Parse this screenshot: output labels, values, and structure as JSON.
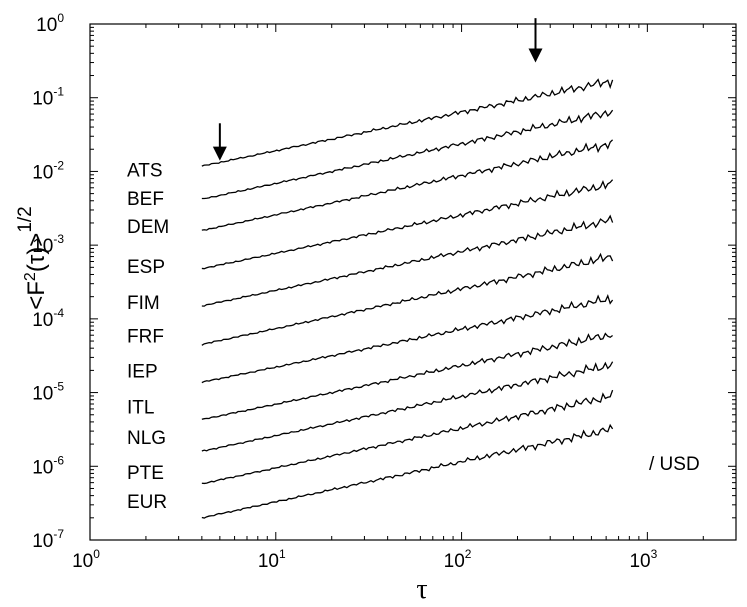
{
  "chart_data": {
    "type": "line",
    "xscale": "log",
    "yscale": "log",
    "xlim": [
      1,
      3000
    ],
    "ylim": [
      1e-07,
      1
    ],
    "grid": false,
    "xlabel": "τ",
    "ylabel_main": "<F",
    "ylabel_sup": "2",
    "ylabel_mid": "(τ)>",
    "ylabel_power": "1/2",
    "annotation": "/ USD",
    "x_ticks": [
      {
        "value": 1,
        "base": "10",
        "exp": "0"
      },
      {
        "value": 10,
        "base": "10",
        "exp": "1"
      },
      {
        "value": 100,
        "base": "10",
        "exp": "2"
      },
      {
        "value": 1000,
        "base": "10",
        "exp": "3"
      }
    ],
    "y_ticks": [
      {
        "value": 1e-07,
        "base": "10",
        "exp": "-7"
      },
      {
        "value": 1e-06,
        "base": "10",
        "exp": "-6"
      },
      {
        "value": 1e-05,
        "base": "10",
        "exp": "-5"
      },
      {
        "value": 0.0001,
        "base": "10",
        "exp": "-4"
      },
      {
        "value": 0.001,
        "base": "10",
        "exp": "-3"
      },
      {
        "value": 0.01,
        "base": "10",
        "exp": "-2"
      },
      {
        "value": 0.1,
        "base": "10",
        "exp": "-1"
      },
      {
        "value": 1,
        "base": "10",
        "exp": "0"
      }
    ],
    "arrows": [
      {
        "x": 5,
        "y_top": 0.045,
        "y_bottom": 0.014
      },
      {
        "x": 250,
        "y_top": 1.2,
        "y_bottom": 0.3
      }
    ],
    "x_range": [
      4,
      650
    ],
    "series": [
      {
        "name": "ATS",
        "y_start": 0.0118,
        "y_end": 0.17,
        "label_y": 0.0085
      },
      {
        "name": "BEF",
        "y_start": 0.0042,
        "y_end": 0.065,
        "label_y": 0.0035
      },
      {
        "name": "DEM",
        "y_start": 0.00158,
        "y_end": 0.024,
        "label_y": 0.00145
      },
      {
        "name": "ESP",
        "y_start": 0.00048,
        "y_end": 0.0068,
        "label_y": 0.00042
      },
      {
        "name": "FIM",
        "y_start": 0.00015,
        "y_end": 0.0022,
        "label_y": 0.000137
      },
      {
        "name": "FRF",
        "y_start": 4.5e-05,
        "y_end": 0.0007,
        "label_y": 4.8e-05
      },
      {
        "name": "IEP",
        "y_start": 1.38e-05,
        "y_end": 0.00019,
        "label_y": 1.6e-05
      },
      {
        "name": "ITL",
        "y_start": 4.3e-06,
        "y_end": 6.2e-05,
        "label_y": 5.2e-06
      },
      {
        "name": "NLG",
        "y_start": 1.6e-06,
        "y_end": 2.4e-05,
        "label_y": 2e-06
      },
      {
        "name": "PTE",
        "y_start": 5.8e-07,
        "y_end": 9e-06,
        "label_y": 6.7e-07
      },
      {
        "name": "EUR",
        "y_start": 2e-07,
        "y_end": 3.2e-06,
        "label_y": 2.7e-07
      }
    ]
  }
}
